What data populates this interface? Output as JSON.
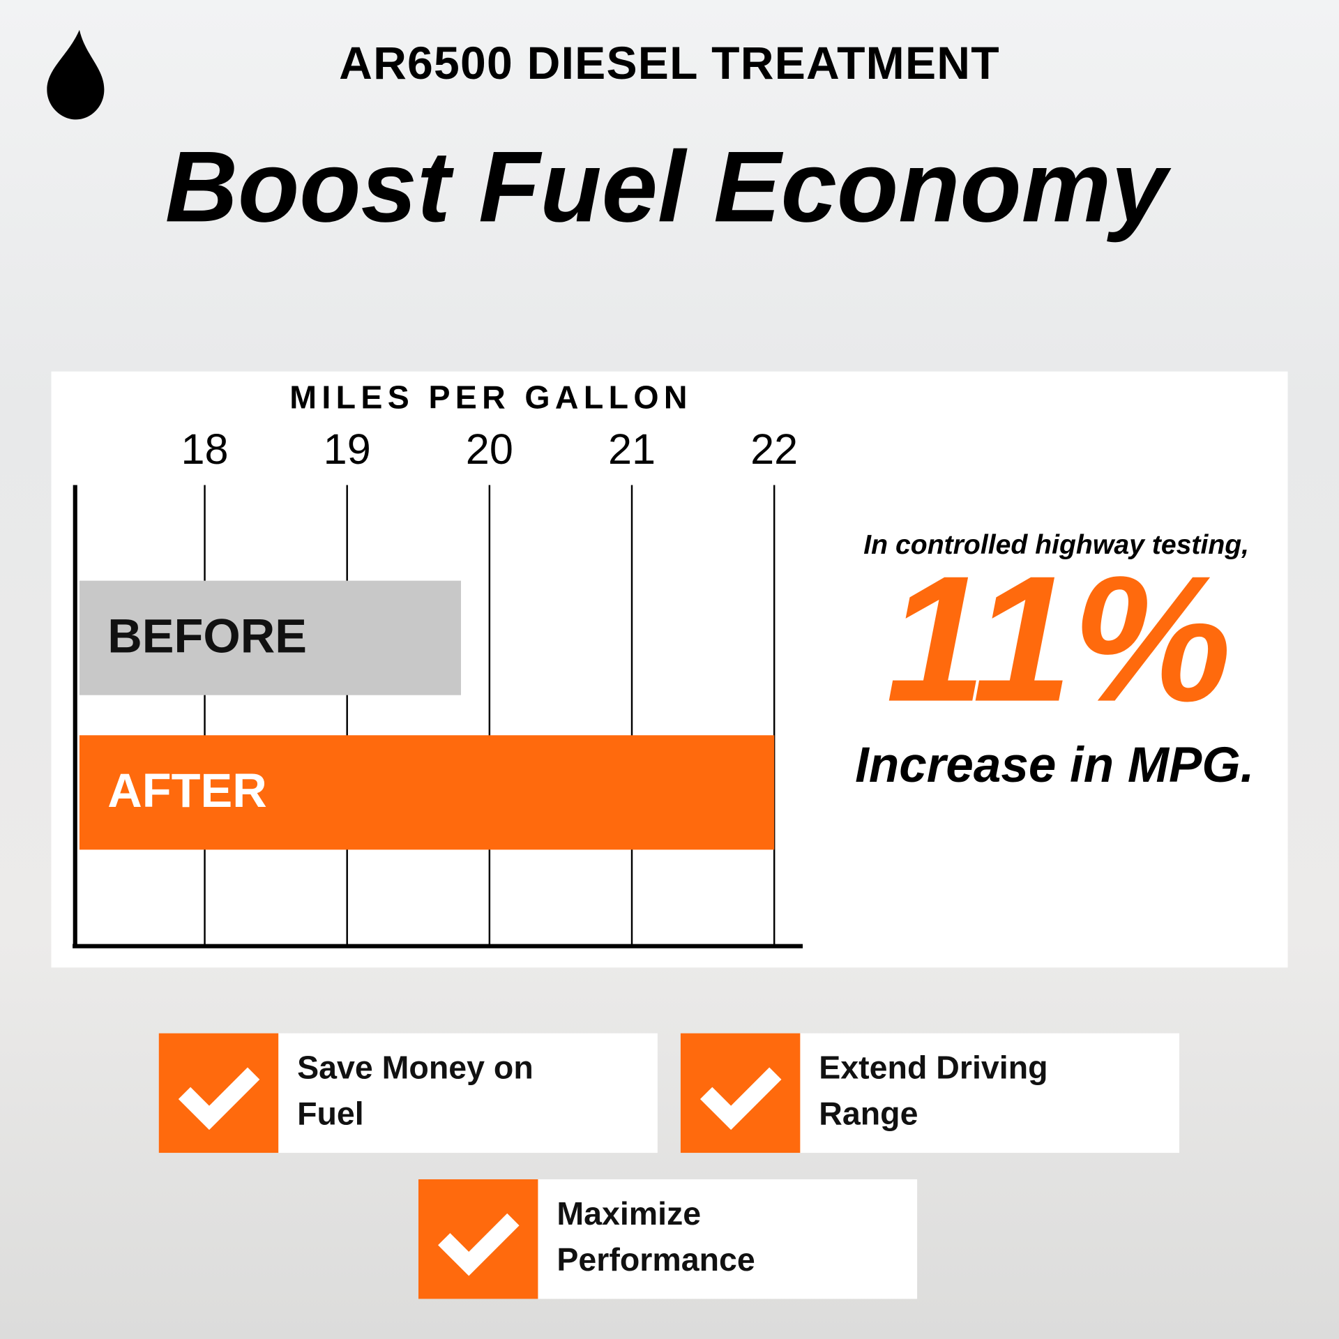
{
  "header": {
    "title": "AR6500 DIESEL TREATMENT",
    "headline": "Boost Fuel Economy"
  },
  "chart_data": {
    "type": "barh",
    "x_label": "MILES PER GALLON",
    "categories": [
      "BEFORE",
      "AFTER"
    ],
    "values": [
      19.8,
      22
    ],
    "colors": [
      "#c8c8c8",
      "#ff6a0d"
    ],
    "label_colors": [
      "#111111",
      "#ffffff"
    ],
    "xlim": [
      17.09,
      22.2
    ],
    "xticks": [
      18,
      19,
      20,
      21,
      22
    ],
    "grid": true
  },
  "callout": {
    "lead": "In controlled highway testing,",
    "figure": "11%",
    "tail": "Increase in MPG."
  },
  "benefits": [
    [
      "Save Money on",
      "Fuel"
    ],
    [
      "Extend Driving",
      "Range"
    ],
    [
      "Maximize",
      "Performance"
    ]
  ]
}
